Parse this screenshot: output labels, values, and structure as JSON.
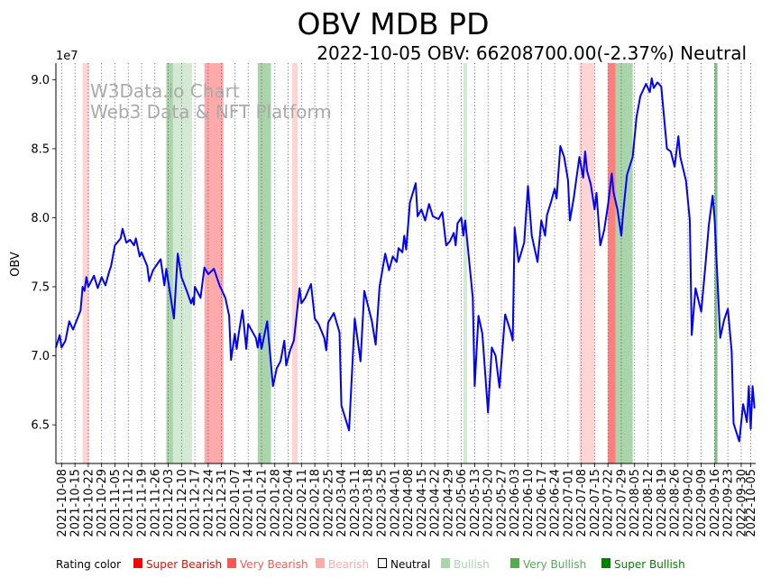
{
  "chart_data": {
    "type": "line",
    "title": "OBV MDB PD",
    "subtitle": "2022-10-05 OBV: 66208700.00(-2.37%) Neutral",
    "ylabel": "OBV",
    "xlabel": "",
    "y_scale_label": "1e7",
    "y_unit_multiplier": 10000000,
    "ylim": [
      6.22,
      9.12
    ],
    "xlim_days": [
      -3,
      364.6
    ],
    "x_start_date": "2021-10-08",
    "grid": "vertical dotted at x ticks",
    "yticks": [
      {
        "value": 6.5,
        "label": "6.5"
      },
      {
        "value": 7.0,
        "label": "7.0"
      },
      {
        "value": 7.5,
        "label": "7.5"
      },
      {
        "value": 8.0,
        "label": "8.0"
      },
      {
        "value": 8.5,
        "label": "8.5"
      },
      {
        "value": 9.0,
        "label": "9.0"
      }
    ],
    "xticks": [
      {
        "day": 0,
        "label": "2021-10-08"
      },
      {
        "day": 7,
        "label": "2021-10-15"
      },
      {
        "day": 14,
        "label": "2021-10-22"
      },
      {
        "day": 21,
        "label": "2021-10-29"
      },
      {
        "day": 28,
        "label": "2021-11-05"
      },
      {
        "day": 35,
        "label": "2021-11-12"
      },
      {
        "day": 42,
        "label": "2021-11-19"
      },
      {
        "day": 49,
        "label": "2021-11-26"
      },
      {
        "day": 56,
        "label": "2021-12-03"
      },
      {
        "day": 63,
        "label": "2021-12-10"
      },
      {
        "day": 70,
        "label": "2021-12-17"
      },
      {
        "day": 77,
        "label": "2021-12-24"
      },
      {
        "day": 84,
        "label": "2021-12-31"
      },
      {
        "day": 91,
        "label": "2022-01-07"
      },
      {
        "day": 98,
        "label": "2022-01-14"
      },
      {
        "day": 105,
        "label": "2022-01-21"
      },
      {
        "day": 112,
        "label": "2022-01-28"
      },
      {
        "day": 119,
        "label": "2022-02-04"
      },
      {
        "day": 126,
        "label": "2022-02-11"
      },
      {
        "day": 133,
        "label": "2022-02-18"
      },
      {
        "day": 140,
        "label": "2022-02-25"
      },
      {
        "day": 147,
        "label": "2022-03-04"
      },
      {
        "day": 154,
        "label": "2022-03-11"
      },
      {
        "day": 161,
        "label": "2022-03-18"
      },
      {
        "day": 168,
        "label": "2022-03-25"
      },
      {
        "day": 175,
        "label": "2022-04-01"
      },
      {
        "day": 182,
        "label": "2022-04-08"
      },
      {
        "day": 189,
        "label": "2022-04-15"
      },
      {
        "day": 196,
        "label": "2022-04-22"
      },
      {
        "day": 203,
        "label": "2022-04-29"
      },
      {
        "day": 210,
        "label": "2022-05-06"
      },
      {
        "day": 217,
        "label": "2022-05-13"
      },
      {
        "day": 224,
        "label": "2022-05-20"
      },
      {
        "day": 231,
        "label": "2022-05-27"
      },
      {
        "day": 238,
        "label": "2022-06-03"
      },
      {
        "day": 245,
        "label": "2022-06-10"
      },
      {
        "day": 252,
        "label": "2022-06-17"
      },
      {
        "day": 259,
        "label": "2022-06-24"
      },
      {
        "day": 266,
        "label": "2022-07-01"
      },
      {
        "day": 273,
        "label": "2022-07-08"
      },
      {
        "day": 280,
        "label": "2022-07-15"
      },
      {
        "day": 287,
        "label": "2022-07-22"
      },
      {
        "day": 294,
        "label": "2022-07-29"
      },
      {
        "day": 301,
        "label": "2022-08-05"
      },
      {
        "day": 308,
        "label": "2022-08-12"
      },
      {
        "day": 315,
        "label": "2022-08-19"
      },
      {
        "day": 322,
        "label": "2022-08-26"
      },
      {
        "day": 329,
        "label": "2022-09-02"
      },
      {
        "day": 336,
        "label": "2022-09-09"
      },
      {
        "day": 343,
        "label": "2022-09-16"
      },
      {
        "day": 350,
        "label": "2022-09-23"
      },
      {
        "day": 357,
        "label": "2022-09-30"
      },
      {
        "day": 362,
        "label": "2022-10-05"
      }
    ],
    "series": [
      {
        "name": "OBV",
        "color": "#0000ff",
        "points_day_value": [
          [
            -3,
            7.06
          ],
          [
            -1,
            7.15
          ],
          [
            0,
            7.06
          ],
          [
            2,
            7.11
          ],
          [
            4,
            7.25
          ],
          [
            6,
            7.19
          ],
          [
            10,
            7.33
          ],
          [
            11,
            7.5
          ],
          [
            12,
            7.47
          ],
          [
            13,
            7.57
          ],
          [
            14,
            7.5
          ],
          [
            17,
            7.58
          ],
          [
            19,
            7.49
          ],
          [
            21,
            7.57
          ],
          [
            23,
            7.51
          ],
          [
            25,
            7.61
          ],
          [
            26,
            7.65
          ],
          [
            28,
            7.8
          ],
          [
            31,
            7.85
          ],
          [
            32,
            7.92
          ],
          [
            34,
            7.82
          ],
          [
            36,
            7.84
          ],
          [
            38,
            7.8
          ],
          [
            39,
            7.85
          ],
          [
            41,
            7.72
          ],
          [
            42,
            7.75
          ],
          [
            45,
            7.65
          ],
          [
            46,
            7.54
          ],
          [
            48,
            7.62
          ],
          [
            52,
            7.7
          ],
          [
            54,
            7.51
          ],
          [
            55,
            7.63
          ],
          [
            57,
            7.45
          ],
          [
            59,
            7.27
          ],
          [
            61,
            7.74
          ],
          [
            63,
            7.57
          ],
          [
            66,
            7.46
          ],
          [
            68,
            7.38
          ],
          [
            69,
            7.42
          ],
          [
            69.5,
            7.37
          ],
          [
            70,
            7.5
          ],
          [
            73,
            7.42
          ],
          [
            75,
            7.64
          ],
          [
            77,
            7.59
          ],
          [
            80,
            7.63
          ],
          [
            82,
            7.55
          ],
          [
            83,
            7.51
          ],
          [
            86,
            7.42
          ],
          [
            88,
            7.29
          ],
          [
            89,
            6.97
          ],
          [
            91,
            7.16
          ],
          [
            92,
            7.05
          ],
          [
            93,
            7.16
          ],
          [
            95,
            7.33
          ],
          [
            97,
            7.05
          ],
          [
            98,
            7.23
          ],
          [
            102,
            7.13
          ],
          [
            103,
            7.06
          ],
          [
            104,
            7.16
          ],
          [
            105,
            7.05
          ],
          [
            108,
            7.25
          ],
          [
            111,
            6.78
          ],
          [
            113,
            6.91
          ],
          [
            115,
            6.96
          ],
          [
            117,
            7.11
          ],
          [
            118,
            6.93
          ],
          [
            120,
            7.04
          ],
          [
            122,
            7.11
          ],
          [
            125,
            7.49
          ],
          [
            126,
            7.38
          ],
          [
            128,
            7.42
          ],
          [
            131,
            7.52
          ],
          [
            133,
            7.27
          ],
          [
            135,
            7.23
          ],
          [
            138,
            7.13
          ],
          [
            139,
            7.04
          ],
          [
            140,
            7.24
          ],
          [
            143,
            7.31
          ],
          [
            146,
            7.17
          ],
          [
            147,
            6.64
          ],
          [
            151,
            6.46
          ],
          [
            154,
            7.27
          ],
          [
            157,
            6.96
          ],
          [
            159,
            7.47
          ],
          [
            163,
            7.25
          ],
          [
            165,
            7.08
          ],
          [
            167,
            7.5
          ],
          [
            170,
            7.74
          ],
          [
            172,
            7.62
          ],
          [
            174,
            7.72
          ],
          [
            176,
            7.68
          ],
          [
            177,
            7.78
          ],
          [
            179,
            7.75
          ],
          [
            180,
            7.87
          ],
          [
            181,
            7.77
          ],
          [
            183,
            8.11
          ],
          [
            186,
            8.25
          ],
          [
            187,
            8.01
          ],
          [
            189,
            8.06
          ],
          [
            191,
            7.98
          ],
          [
            193,
            8.1
          ],
          [
            195,
            8.01
          ],
          [
            198,
            7.99
          ],
          [
            200,
            8.04
          ],
          [
            202,
            7.8
          ],
          [
            204,
            7.83
          ],
          [
            206,
            7.89
          ],
          [
            207,
            7.8
          ],
          [
            208,
            7.96
          ],
          [
            210,
            8.0
          ],
          [
            211,
            7.87
          ],
          [
            212,
            7.98
          ],
          [
            216,
            7.42
          ],
          [
            217,
            6.78
          ],
          [
            219,
            7.29
          ],
          [
            221,
            7.16
          ],
          [
            224,
            6.59
          ],
          [
            226,
            7.06
          ],
          [
            228,
            7.0
          ],
          [
            230,
            6.77
          ],
          [
            233,
            7.3
          ],
          [
            236,
            7.17
          ],
          [
            237,
            7.11
          ],
          [
            238,
            7.93
          ],
          [
            240,
            7.68
          ],
          [
            243,
            7.82
          ],
          [
            245,
            8.23
          ],
          [
            247,
            7.87
          ],
          [
            250,
            7.68
          ],
          [
            252,
            7.98
          ],
          [
            254,
            7.87
          ],
          [
            255,
            8.02
          ],
          [
            257,
            8.11
          ],
          [
            259,
            8.21
          ],
          [
            260,
            8.14
          ],
          [
            262,
            8.52
          ],
          [
            264,
            8.44
          ],
          [
            266,
            8.27
          ],
          [
            267,
            7.98
          ],
          [
            269,
            8.14
          ],
          [
            272,
            8.44
          ],
          [
            274,
            8.29
          ],
          [
            275,
            8.48
          ],
          [
            276,
            8.34
          ],
          [
            278,
            8.24
          ],
          [
            280,
            8.06
          ],
          [
            281,
            8.18
          ],
          [
            283,
            7.8
          ],
          [
            285,
            7.91
          ],
          [
            287,
            8.09
          ],
          [
            289,
            8.32
          ],
          [
            290,
            8.18
          ],
          [
            292,
            8.06
          ],
          [
            294,
            7.87
          ],
          [
            295,
            8.04
          ],
          [
            297,
            8.31
          ],
          [
            300,
            8.44
          ],
          [
            302,
            8.73
          ],
          [
            304,
            8.88
          ],
          [
            307,
            8.97
          ],
          [
            309,
            8.91
          ],
          [
            310,
            9.01
          ],
          [
            311,
            8.94
          ],
          [
            313,
            8.98
          ],
          [
            315,
            8.95
          ],
          [
            318,
            8.5
          ],
          [
            320,
            8.48
          ],
          [
            322,
            8.37
          ],
          [
            324,
            8.59
          ],
          [
            325,
            8.44
          ],
          [
            328,
            8.27
          ],
          [
            330,
            7.98
          ],
          [
            331,
            7.15
          ],
          [
            333,
            7.49
          ],
          [
            336,
            7.32
          ],
          [
            338,
            7.62
          ],
          [
            340,
            7.95
          ],
          [
            342,
            8.16
          ],
          [
            343,
            8.0
          ],
          [
            346,
            7.13
          ],
          [
            348,
            7.26
          ],
          [
            350,
            7.34
          ],
          [
            352,
            7.03
          ],
          [
            353,
            6.51
          ],
          [
            356,
            6.38
          ],
          [
            358,
            6.65
          ],
          [
            360,
            6.52
          ],
          [
            361,
            6.78
          ],
          [
            362,
            6.47
          ],
          [
            363,
            6.78
          ],
          [
            364,
            6.62
          ]
        ]
      }
    ],
    "rating_bands": [
      {
        "from": 11,
        "to": 14.5,
        "rating": "Bearish"
      },
      {
        "from": 55,
        "to": 58.5,
        "rating": "Very Bullish"
      },
      {
        "from": 58.5,
        "to": 68.5,
        "rating": "Bullish"
      },
      {
        "from": 75,
        "to": 78,
        "rating": "Very Bearish"
      },
      {
        "from": 78,
        "to": 85,
        "rating": "Very Bearish"
      },
      {
        "from": 103,
        "to": 110,
        "rating": "Very Bullish"
      },
      {
        "from": 121,
        "to": 124,
        "rating": "Bearish"
      },
      {
        "from": 211,
        "to": 213,
        "rating": "Bullish"
      },
      {
        "from": 272,
        "to": 280,
        "rating": "Bearish"
      },
      {
        "from": 287,
        "to": 291,
        "rating": "Super Bearish"
      },
      {
        "from": 291,
        "to": 300,
        "rating": "Very Bullish"
      },
      {
        "from": 343,
        "to": 344.5,
        "rating": "Super Bullish"
      }
    ],
    "watermark": [
      "W3Data.io Chart",
      "Web3 Data & NFT Platform"
    ],
    "legend": {
      "title": "Rating color",
      "placement": "bottom",
      "items": [
        {
          "label": "Super Bearish",
          "color": "#ff0000",
          "swatch": "filled"
        },
        {
          "label": "Very Bearish",
          "color": "#ff5555",
          "swatch": "filled"
        },
        {
          "label": "Bearish",
          "color": "#ffaaaa",
          "swatch": "filled"
        },
        {
          "label": "Neutral",
          "color": "#000000",
          "swatch": "outline"
        },
        {
          "label": "Bullish",
          "color": "#aad4aa",
          "swatch": "filled"
        },
        {
          "label": "Very Bullish",
          "color": "#55aa55",
          "swatch": "filled"
        },
        {
          "label": "Super Bullish",
          "color": "#008000",
          "swatch": "filled"
        }
      ]
    }
  }
}
